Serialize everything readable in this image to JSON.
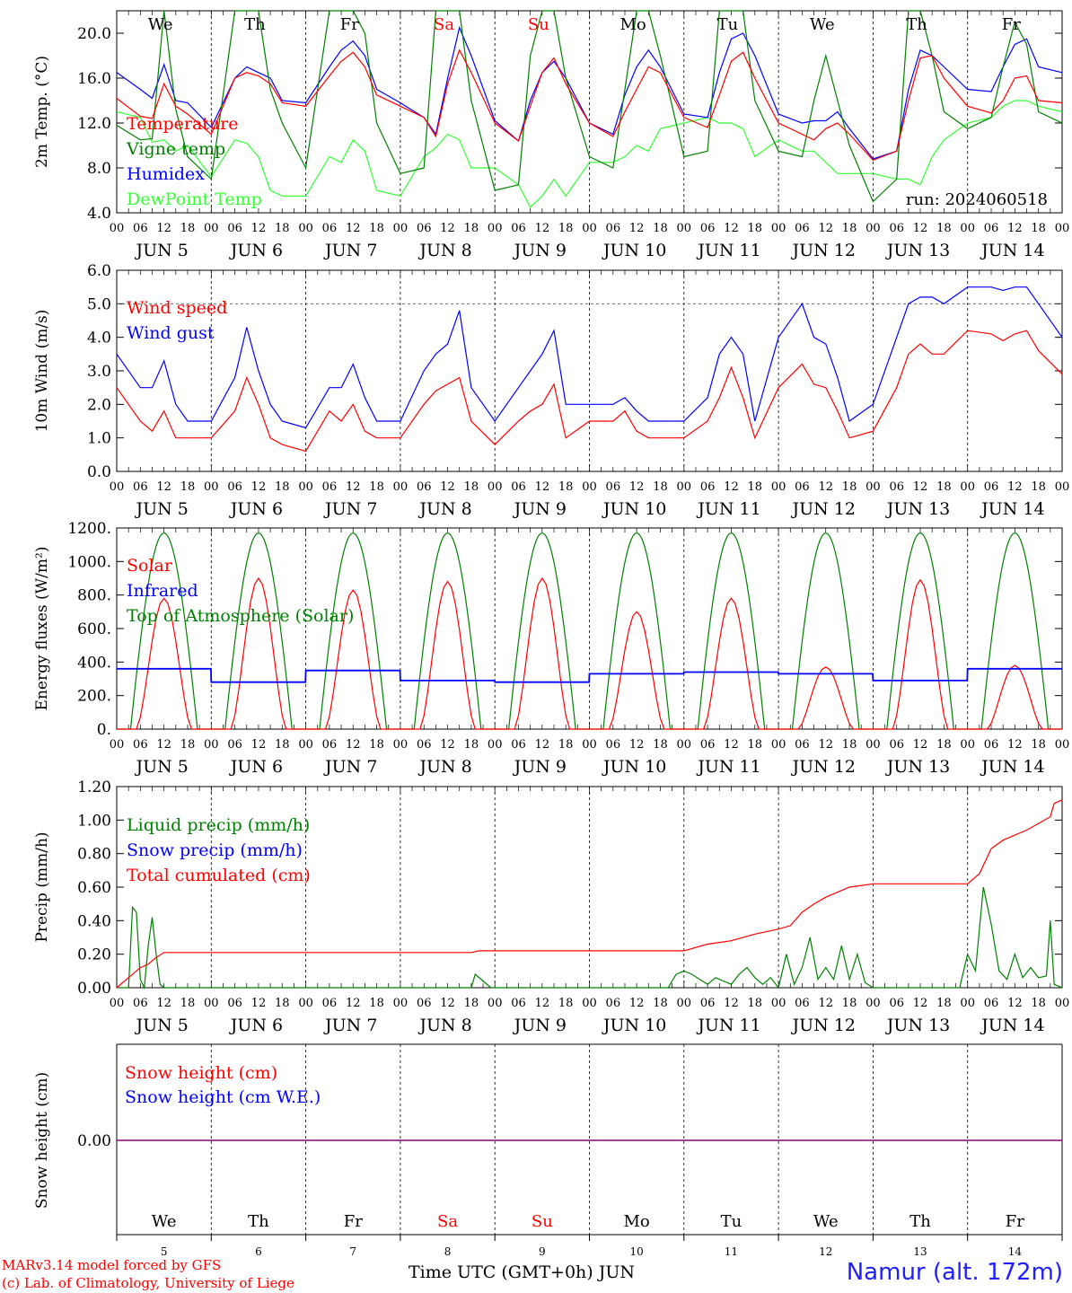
{
  "run_label": "run: 2024060518",
  "footer": {
    "model": "MARv3.14 model forced by GFS",
    "copyright": "(c) Lab. of Climatology, University of Liege",
    "time_axis": "Time UTC (GMT+0h)",
    "month": "JUN",
    "station": "Namur (alt. 172m)"
  },
  "days": [
    {
      "name": "We",
      "date": "5",
      "weekend": false
    },
    {
      "name": "Th",
      "date": "6",
      "weekend": false
    },
    {
      "name": "Fr",
      "date": "7",
      "weekend": false
    },
    {
      "name": "Sa",
      "date": "8",
      "weekend": true
    },
    {
      "name": "Su",
      "date": "9",
      "weekend": true
    },
    {
      "name": "Mo",
      "date": "10",
      "weekend": false
    },
    {
      "name": "Tu",
      "date": "11",
      "weekend": false
    },
    {
      "name": "We",
      "date": "12",
      "weekend": false
    },
    {
      "name": "Th",
      "date": "13",
      "weekend": false
    },
    {
      "name": "Fr",
      "date": "14",
      "weekend": false
    }
  ],
  "hour_ticks": [
    "00",
    "06",
    "12",
    "18"
  ],
  "colors": {
    "red": "#ff0000",
    "green": "#008000",
    "blue": "#0000ff",
    "lightgreen": "#33ff33",
    "purple": "#800080",
    "weekend": "#ff0000"
  },
  "chart_data": [
    {
      "type": "line",
      "ylabel": "2m Temp. (°C)",
      "yticks": [
        "4.0",
        "8.0",
        "12.0",
        "16.0",
        "20.0"
      ],
      "ylim": [
        4,
        22
      ],
      "x_unit": "hours from JUN 5 00 UTC",
      "x": [
        0,
        6,
        9,
        12,
        15,
        18,
        24,
        30,
        33,
        36,
        39,
        42,
        48,
        54,
        57,
        60,
        63,
        66,
        72,
        78,
        81,
        84,
        87,
        90,
        96,
        102,
        105,
        108,
        111,
        114,
        120,
        126,
        129,
        132,
        135,
        138,
        144,
        150,
        153,
        156,
        159,
        162,
        168,
        174,
        177,
        180,
        183,
        186,
        192,
        198,
        201,
        204,
        207,
        210,
        216,
        222,
        225,
        228,
        231,
        234,
        240
      ],
      "series": [
        {
          "name": "Temperature",
          "color": "red",
          "values": [
            14.2,
            12.6,
            12.4,
            15.5,
            13.5,
            12.8,
            11.0,
            16.0,
            16.5,
            16.2,
            15.5,
            13.8,
            13.5,
            16.2,
            17.5,
            18.3,
            17.0,
            14.5,
            13.5,
            12.5,
            10.8,
            15.5,
            18.5,
            16.5,
            12.0,
            10.4,
            13.5,
            16.5,
            17.8,
            15.5,
            12.0,
            10.8,
            13.0,
            15.0,
            17.0,
            16.5,
            12.5,
            11.6,
            14.5,
            17.5,
            18.3,
            16.0,
            12.0,
            11.0,
            10.5,
            11.5,
            12.0,
            11.0,
            8.7,
            9.5,
            14.0,
            17.8,
            18.0,
            16.0,
            13.5,
            12.9,
            14.0,
            16.0,
            16.2,
            14.0,
            13.8
          ]
        },
        {
          "name": "Vigne temp",
          "color": "green",
          "values": [
            11.8,
            10.5,
            10.6,
            22.0,
            13.2,
            9.0,
            7.0,
            22.0,
            22.0,
            22.0,
            15.0,
            12.0,
            8.0,
            22.0,
            22.0,
            22.0,
            20.0,
            12.0,
            7.5,
            8.0,
            22.0,
            22.0,
            22.0,
            14.0,
            6.0,
            6.5,
            18.0,
            22.0,
            22.0,
            16.0,
            9.0,
            8.0,
            15.0,
            22.0,
            22.0,
            18.0,
            9.0,
            9.5,
            22.0,
            22.0,
            22.0,
            14.0,
            9.5,
            9.0,
            14.0,
            18.0,
            14.0,
            10.0,
            5.0,
            7.0,
            22.0,
            22.0,
            18.0,
            13.0,
            11.5,
            12.5,
            17.0,
            21.0,
            19.0,
            13.0,
            12.0
          ]
        },
        {
          "name": "Humidex",
          "color": "blue",
          "values": [
            16.5,
            15.0,
            14.2,
            17.2,
            14.0,
            13.8,
            11.6,
            16.0,
            17.0,
            16.5,
            16.0,
            14.0,
            13.8,
            17.0,
            18.5,
            19.3,
            18.0,
            15.0,
            13.8,
            12.5,
            11.0,
            16.0,
            20.5,
            18.0,
            12.2,
            10.4,
            14.0,
            16.5,
            17.5,
            16.0,
            12.0,
            11.0,
            14.5,
            17.0,
            18.5,
            17.0,
            12.8,
            12.5,
            16.5,
            19.5,
            20.0,
            18.0,
            12.8,
            12.0,
            12.2,
            12.2,
            13.0,
            11.5,
            8.8,
            9.5,
            15.0,
            18.5,
            18.0,
            17.0,
            15.0,
            14.8,
            17.0,
            19.0,
            19.5,
            17.0,
            16.5
          ]
        },
        {
          "name": "DewPoint Temp",
          "color": "lightgreen",
          "values": [
            13.0,
            12.5,
            10.3,
            10.5,
            9.5,
            10.0,
            7.2,
            10.5,
            10.2,
            9.0,
            6.0,
            5.5,
            5.5,
            9.0,
            8.5,
            10.5,
            9.5,
            6.0,
            5.5,
            9.0,
            9.8,
            11.0,
            10.5,
            8.0,
            8.0,
            6.5,
            4.5,
            5.5,
            7.0,
            5.5,
            8.5,
            8.5,
            9.0,
            10.0,
            9.5,
            11.5,
            12.0,
            12.5,
            12.0,
            12.0,
            11.5,
            9.0,
            10.5,
            9.5,
            9.5,
            8.5,
            7.5,
            7.5,
            7.5,
            7.0,
            7.0,
            6.5,
            9.0,
            10.5,
            12.0,
            12.5,
            13.5,
            14.0,
            14.0,
            13.5,
            13.0
          ]
        }
      ]
    },
    {
      "type": "line",
      "ylabel": "10m Wind (m/s)",
      "yticks": [
        "0.0",
        "1.0",
        "2.0",
        "3.0",
        "4.0",
        "5.0",
        "6.0"
      ],
      "ylim": [
        0,
        6
      ],
      "ref_line": 5.0,
      "x_unit": "hours from JUN 5 00 UTC",
      "x": [
        0,
        6,
        9,
        12,
        15,
        18,
        24,
        30,
        33,
        36,
        39,
        42,
        48,
        54,
        57,
        60,
        63,
        66,
        72,
        78,
        81,
        84,
        87,
        90,
        96,
        102,
        105,
        108,
        111,
        114,
        120,
        126,
        129,
        132,
        135,
        138,
        144,
        150,
        153,
        156,
        159,
        162,
        168,
        174,
        177,
        180,
        183,
        186,
        192,
        198,
        201,
        204,
        207,
        210,
        216,
        222,
        225,
        228,
        231,
        234,
        240
      ],
      "series": [
        {
          "name": "Wind speed",
          "color": "red",
          "values": [
            2.5,
            1.5,
            1.2,
            1.8,
            1.0,
            1.0,
            1.0,
            1.8,
            2.8,
            2.0,
            1.0,
            0.8,
            0.6,
            1.8,
            1.5,
            2.0,
            1.2,
            1.0,
            1.0,
            2.0,
            2.4,
            2.6,
            2.8,
            1.5,
            0.8,
            1.5,
            1.8,
            2.0,
            2.6,
            1.0,
            1.5,
            1.5,
            1.8,
            1.2,
            1.0,
            1.0,
            1.0,
            1.5,
            2.2,
            3.1,
            2.2,
            1.0,
            2.5,
            3.2,
            2.6,
            2.5,
            1.8,
            1.0,
            1.2,
            2.5,
            3.5,
            3.8,
            3.5,
            3.5,
            4.2,
            4.1,
            3.9,
            4.1,
            4.2,
            3.6,
            2.9
          ]
        },
        {
          "name": "Wind gust",
          "color": "blue",
          "values": [
            3.5,
            2.5,
            2.5,
            3.3,
            2.0,
            1.5,
            1.5,
            2.8,
            4.3,
            3.0,
            2.0,
            1.5,
            1.3,
            2.5,
            2.5,
            3.2,
            2.2,
            1.5,
            1.5,
            3.0,
            3.5,
            3.8,
            4.8,
            2.5,
            1.5,
            2.5,
            3.0,
            3.5,
            4.2,
            2.0,
            2.0,
            2.0,
            2.2,
            1.8,
            1.5,
            1.5,
            1.5,
            2.2,
            3.5,
            4.0,
            3.5,
            1.5,
            4.0,
            5.0,
            4.0,
            3.8,
            2.8,
            1.5,
            2.0,
            4.0,
            5.0,
            5.2,
            5.2,
            5.0,
            5.5,
            5.5,
            5.4,
            5.5,
            5.5,
            5.0,
            4.0
          ]
        }
      ]
    },
    {
      "type": "line",
      "ylabel": "Energy fluxes (W/m²)",
      "yticks": [
        "0.",
        "200.",
        "400.",
        "600.",
        "800.",
        "1000.",
        "1200."
      ],
      "ylim": [
        0,
        1200
      ],
      "x_unit": "hours from JUN 5 00 UTC",
      "peak_hour_utc": 12,
      "series": [
        {
          "name": "Solar",
          "color": "red",
          "daily_peaks": [
            780,
            900,
            830,
            880,
            900,
            700,
            780,
            370,
            890,
            380
          ]
        },
        {
          "name": "Infrared",
          "color": "blue",
          "daily_values": [
            360,
            280,
            350,
            290,
            280,
            330,
            340,
            330,
            290,
            360
          ]
        },
        {
          "name": "Top of Atmosphere (Solar)",
          "color": "green",
          "daily_peaks": [
            1170,
            1170,
            1170,
            1170,
            1170,
            1170,
            1170,
            1170,
            1170,
            1170
          ]
        }
      ]
    },
    {
      "type": "line",
      "ylabel": "Precip (mm/h)",
      "yticks": [
        "0.00",
        "0.20",
        "0.40",
        "0.60",
        "0.80",
        "1.00",
        "1.20"
      ],
      "ylim": [
        0,
        1.2
      ],
      "x_unit": "hours from JUN 5 00 UTC",
      "series": [
        {
          "name": "Liquid precip (mm/h)",
          "color": "green",
          "x": [
            0,
            3,
            4,
            5,
            6,
            7,
            8,
            9,
            10,
            11,
            12,
            13,
            14,
            20,
            90,
            91,
            93,
            95,
            96,
            140,
            142,
            144,
            146,
            150,
            152,
            156,
            158,
            160,
            162,
            164,
            166,
            168,
            170,
            172,
            174,
            176,
            178,
            180,
            182,
            184,
            186,
            188,
            190,
            192,
            194,
            196,
            198,
            214,
            215,
            216,
            218,
            220,
            222,
            224,
            226,
            228,
            230,
            232,
            234,
            236,
            237,
            238,
            240
          ],
          "values": [
            0,
            0,
            0.48,
            0.45,
            0.05,
            0.0,
            0.25,
            0.42,
            0.2,
            0.02,
            0,
            0,
            0,
            0,
            0,
            0.08,
            0.04,
            0,
            0,
            0,
            0.08,
            0.1,
            0.08,
            0.02,
            0.06,
            0.02,
            0.08,
            0.12,
            0.06,
            0.02,
            0.06,
            0,
            0.2,
            0.02,
            0.12,
            0.3,
            0.05,
            0.12,
            0.05,
            0.25,
            0.05,
            0.2,
            0.03,
            0,
            0,
            0,
            0,
            0,
            0.1,
            0.2,
            0.1,
            0.6,
            0.38,
            0.1,
            0.05,
            0.2,
            0.06,
            0.12,
            0.06,
            0.07,
            0.4,
            0.02,
            0
          ]
        },
        {
          "name": "Snow precip (mm/h)",
          "color": "blue",
          "values": []
        },
        {
          "name": "Total cumulated (cm)",
          "color": "red",
          "x": [
            0,
            4,
            6,
            8,
            10,
            12,
            90,
            92,
            144,
            150,
            156,
            162,
            168,
            171,
            174,
            177,
            180,
            186,
            192,
            198,
            204,
            210,
            216,
            219,
            222,
            225,
            228,
            231,
            234,
            237,
            238,
            240
          ],
          "values": [
            0,
            0.08,
            0.12,
            0.14,
            0.18,
            0.21,
            0.21,
            0.22,
            0.22,
            0.26,
            0.28,
            0.32,
            0.35,
            0.37,
            0.45,
            0.5,
            0.54,
            0.6,
            0.62,
            0.62,
            0.62,
            0.62,
            0.62,
            0.68,
            0.83,
            0.88,
            0.91,
            0.94,
            0.98,
            1.02,
            1.1,
            1.12
          ]
        }
      ]
    },
    {
      "type": "line",
      "ylabel": "Snow height (cm)",
      "yticks": [
        "0.00"
      ],
      "series": [
        {
          "name": "Snow height (cm)",
          "color": "red",
          "values": [
            0,
            0
          ]
        },
        {
          "name": "Snow height (cm W.E.)",
          "color": "blue",
          "values": [
            0,
            0
          ]
        }
      ]
    }
  ]
}
